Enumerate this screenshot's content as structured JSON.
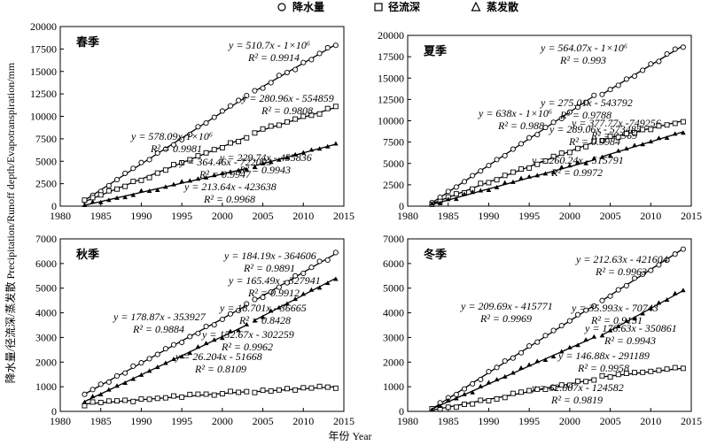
{
  "legend": {
    "precipitation": "降水量",
    "runoff": "径流深",
    "evaporation": "蒸发散"
  },
  "xlabel": "年份 Year",
  "ylabel": "降水量/径流深/蒸发散 Precipitation/Runoff depth/Evapotranspiration/mm",
  "chart_data": [
    {
      "type": "scatter",
      "title": "春季",
      "xlim": [
        1980,
        2015
      ],
      "ylim": [
        0,
        20000
      ],
      "xticks": [
        1980,
        1985,
        1990,
        1995,
        2000,
        2005,
        2010,
        2015
      ],
      "yticks": [
        0,
        2500,
        5000,
        7500,
        10000,
        12500,
        15000,
        17500,
        20000
      ],
      "series": [
        {
          "name": "降水量",
          "marker": "circle",
          "fits": [
            {
              "x": [
                1983,
                2003
              ],
              "y": [
                650,
                12200
              ],
              "eq": "y = 578.09x-1×10⁶",
              "r2": "R² = 0.9981"
            },
            {
              "x": [
                2004,
                2014
              ],
              "y": [
                12800,
                18000
              ],
              "eq": "y = 510.7x - 1×10⁶",
              "r2": "R² = 0.9914"
            }
          ]
        },
        {
          "name": "径流深",
          "marker": "square",
          "fits": [
            {
              "x": [
                1983,
                2003
              ],
              "y": [
                500,
                7700
              ],
              "eq": "y = 364.46x - 722093",
              "r2": "R² = 0.9947"
            },
            {
              "x": [
                2004,
                2014
              ],
              "y": [
                8200,
                11000
              ],
              "eq": "y = 280.96x - 554859",
              "r2": "R² = 0.9808"
            }
          ]
        },
        {
          "name": "蒸发散",
          "marker": "triangle",
          "fits": [
            {
              "x": [
                1983,
                2003
              ],
              "y": [
                100,
                4200
              ],
              "eq": "y = 213.64x - 423638",
              "r2": "R² = 0.9968"
            },
            {
              "x": [
                2004,
                2014
              ],
              "y": [
                4500,
                6900
              ],
              "eq": "y = 229.74x - 455836",
              "r2": "R² = 0.9943"
            }
          ]
        }
      ]
    },
    {
      "type": "scatter",
      "title": "夏季",
      "xlim": [
        1980,
        2015
      ],
      "ylim": [
        0,
        20000
      ],
      "xticks": [
        1980,
        1985,
        1990,
        1995,
        2000,
        2005,
        2010,
        2015
      ],
      "yticks": [
        0,
        2500,
        5000,
        7500,
        10000,
        12500,
        15000,
        17500,
        20000
      ],
      "series": [
        {
          "name": "降水量",
          "marker": "circle",
          "fits": [
            {
              "x": [
                1983,
                2003
              ],
              "y": [
                400,
                12900
              ],
              "eq": "y = 638x - 1×10⁶",
              "r2": "R² = 0.988"
            },
            {
              "x": [
                2004,
                2014
              ],
              "y": [
                13100,
                18800
              ],
              "eq": "y = 564.07x - 1×10⁶",
              "r2": "R² = 0.993"
            }
          ]
        },
        {
          "name": "径流深",
          "marker": "square",
          "fits": [
            {
              "x": [
                1983,
                2003
              ],
              "y": [
                300,
                7500
              ],
              "eq": "y = 377.77x -749256",
              "r2": "R² = 0.969"
            },
            {
              "x": [
                2004,
                2014
              ],
              "y": [
                7800,
                10000
              ],
              "eq": "y = 275.01x - 543792",
              "r2": "R² = 0.9788"
            }
          ]
        },
        {
          "name": "蒸发散",
          "marker": "triangle",
          "fits": [
            {
              "x": [
                1983,
                2003
              ],
              "y": [
                200,
                5400
              ],
              "eq": "y = 260.24x - 515791",
              "r2": "R² = 0.9972"
            },
            {
              "x": [
                2004,
                2014
              ],
              "y": [
                5800,
                8700
              ],
              "eq": "y = 289.06x - 573485",
              "r2": "R² = 0.9984"
            }
          ]
        }
      ]
    },
    {
      "type": "scatter",
      "title": "秋季",
      "xlim": [
        1980,
        2015
      ],
      "ylim": [
        0,
        7000
      ],
      "xticks": [
        1980,
        1985,
        1990,
        1995,
        2000,
        2005,
        2010,
        2015
      ],
      "yticks": [
        0,
        1000,
        2000,
        3000,
        4000,
        5000,
        6000,
        7000
      ],
      "series": [
        {
          "name": "降水量",
          "marker": "circle",
          "fits": [
            {
              "x": [
                1983,
                2003
              ],
              "y": [
                700,
                4300
              ],
              "eq": "y = 178.87x - 353927",
              "r2": "R² = 0.9884"
            },
            {
              "x": [
                2004,
                2014
              ],
              "y": [
                4500,
                6400
              ],
              "eq": "y = 184.19x - 364606",
              "r2": "R² = 0.9891"
            }
          ]
        },
        {
          "name": "径流深",
          "marker": "square",
          "fits": [
            {
              "x": [
                1983,
                2003
              ],
              "y": [
                300,
                800
              ],
              "eq": "y = 26.204x - 51668",
              "r2": "R² = 0.8109"
            },
            {
              "x": [
                2004,
                2014
              ],
              "y": [
                800,
                1000
              ],
              "eq": "y = 18.701x - 36665",
              "r2": "R² = 0.8428"
            }
          ]
        },
        {
          "name": "蒸发散",
          "marker": "triangle",
          "fits": [
            {
              "x": [
                1983,
                2003
              ],
              "y": [
                400,
                3500
              ],
              "eq": "y = 152.67x - 302259",
              "r2": "R² = 0.9962"
            },
            {
              "x": [
                2004,
                2014
              ],
              "y": [
                3700,
                5400
              ],
              "eq": "y = 165.49x - 327941",
              "r2": "R² = 0.9912"
            }
          ]
        }
      ]
    },
    {
      "type": "scatter",
      "title": "冬季",
      "xlim": [
        1980,
        2015
      ],
      "ylim": [
        0,
        7000
      ],
      "xticks": [
        1980,
        1985,
        1990,
        1995,
        2000,
        2005,
        2010,
        2015
      ],
      "yticks": [
        0,
        1000,
        2000,
        3000,
        4000,
        5000,
        6000,
        7000
      ],
      "series": [
        {
          "name": "降水量",
          "marker": "circle",
          "fits": [
            {
              "x": [
                1983,
                2003
              ],
              "y": [
                100,
                4300
              ],
              "eq": "y = 209.69x - 415771",
              "r2": "R² = 0.9969"
            },
            {
              "x": [
                2004,
                2014
              ],
              "y": [
                4500,
                6600
              ],
              "eq": "y = 212.63x - 421604",
              "r2": "R² = 0.9963"
            }
          ]
        },
        {
          "name": "径流深",
          "marker": "square",
          "fits": [
            {
              "x": [
                1983,
                2003
              ],
              "y": [
                50,
                1300
              ],
              "eq": "y = 62.807x - 124582",
              "r2": "R² = 0.9819"
            },
            {
              "x": [
                2004,
                2014
              ],
              "y": [
                1400,
                1750
              ],
              "eq": "y = 35.993x - 70743",
              "r2": "R² = 0.9131"
            }
          ]
        },
        {
          "name": "蒸发散",
          "marker": "triangle",
          "fits": [
            {
              "x": [
                1983,
                2003
              ],
              "y": [
                100,
                3000
              ],
              "eq": "y = 146.88x - 291189",
              "r2": "R² = 0.9958"
            },
            {
              "x": [
                2004,
                2014
              ],
              "y": [
                3100,
                4900
              ],
              "eq": "y = 176.63x - 350861",
              "r2": "R² = 0.9943"
            }
          ]
        }
      ]
    }
  ]
}
